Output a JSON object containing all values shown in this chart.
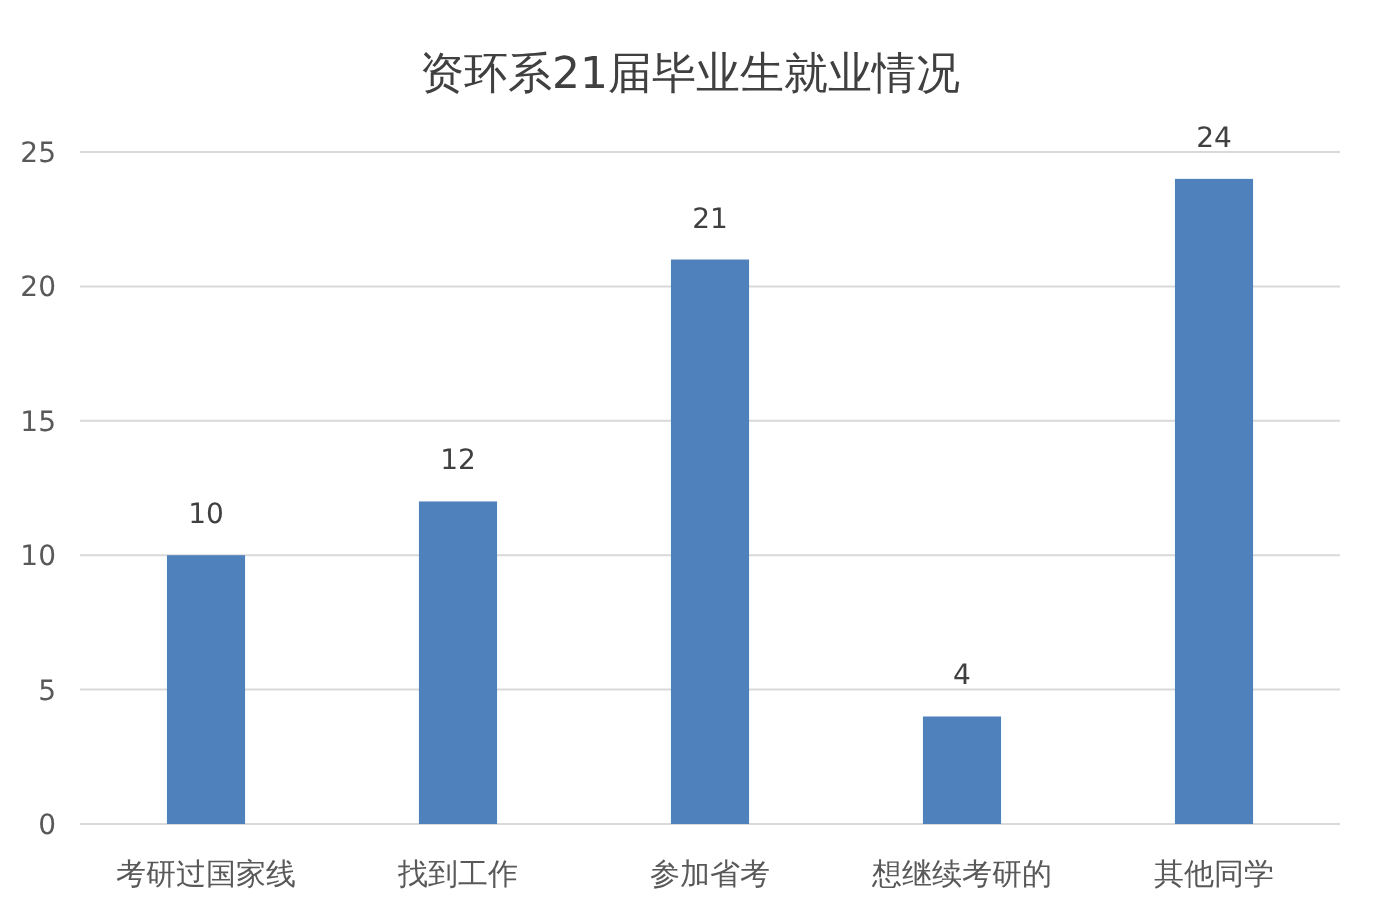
{
  "chart_data": {
    "type": "bar",
    "title": "资环系21届毕业生就业情况",
    "categories": [
      "考研过国家线",
      "找到工作",
      "参加省考",
      "想继续考研的",
      "其他同学"
    ],
    "values": [
      10,
      12,
      21,
      4,
      24
    ],
    "color": "#4f81bd",
    "ylim": [
      0,
      25
    ],
    "yticks": [
      0,
      5,
      10,
      15,
      20,
      25
    ],
    "grid": "y",
    "data_labels": true
  }
}
